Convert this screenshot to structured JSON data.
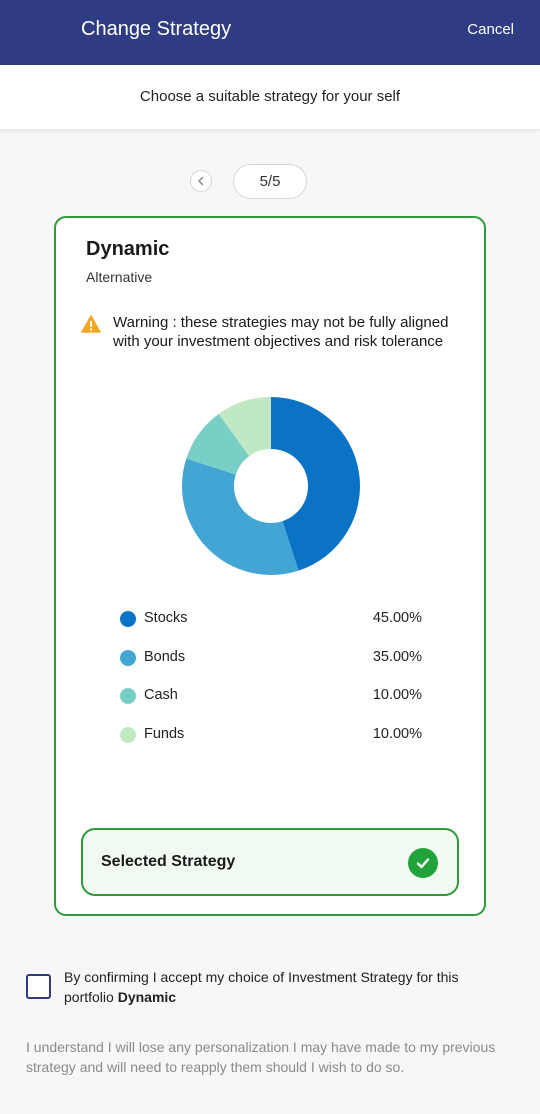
{
  "header": {
    "title": "Change Strategy",
    "cancel_label": "Cancel",
    "background_color": "#2f3b82"
  },
  "subheader": {
    "text": "Choose a suitable strategy for your self"
  },
  "pager": {
    "prev_icon": "chevron-left-icon",
    "count": "5/5"
  },
  "strategy": {
    "name": "Dynamic",
    "category": "Alternative",
    "warning_icon": "warning-triangle-icon",
    "warning_text": "Warning : these strategies may not be fully aligned with your investment objectives and risk tolerance",
    "border_color": "#2e9a3a",
    "selected_label": "Selected Strategy",
    "selected_icon": "checkmark-icon"
  },
  "chart_data": {
    "type": "pie",
    "donut": true,
    "categories": [
      "Stocks",
      "Bonds",
      "Cash",
      "Funds"
    ],
    "values": [
      45,
      35,
      10,
      10
    ],
    "colors": [
      "#0a73c6",
      "#43a5d4",
      "#79cfc6",
      "#c0e8c2"
    ]
  },
  "legend": {
    "items": [
      {
        "label": "Stocks",
        "value": "45.00%",
        "color": "#0a73c6"
      },
      {
        "label": "Bonds",
        "value": "35.00%",
        "color": "#43a5d4"
      },
      {
        "label": "Cash",
        "value": "10.00%",
        "color": "#79cfc6"
      },
      {
        "label": "Funds",
        "value": "10.00%",
        "color": "#c0e8c2"
      }
    ]
  },
  "confirmation": {
    "checked": false,
    "text": "By confirming I accept my choice of Investment Strategy for this portfolio",
    "strategy_name": "Dynamic"
  },
  "disclaimer": "I understand I will lose any personalization I may have made to my previous strategy and will need to reapply them should I wish to do so."
}
